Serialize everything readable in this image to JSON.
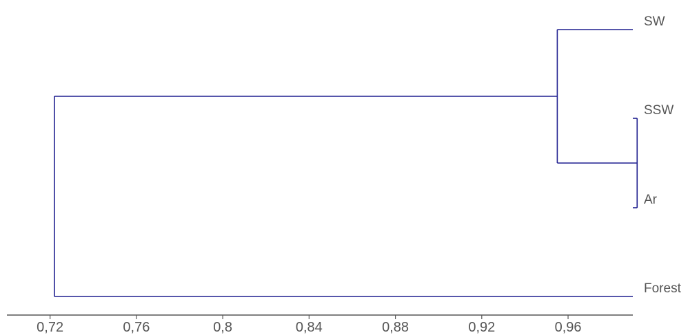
{
  "chart_data": {
    "type": "dendrogram",
    "title": "",
    "xlabel": "",
    "ylabel": "",
    "xlim": [
      0.7,
      0.99
    ],
    "x_ticks": [
      0.72,
      0.76,
      0.8,
      0.84,
      0.88,
      0.92,
      0.96
    ],
    "x_tick_labels": [
      "0,72",
      "0,76",
      "0,8",
      "0,84",
      "0,88",
      "0,92",
      "0,96"
    ],
    "leaves": [
      "SW",
      "SSW",
      "Ar",
      "Forest"
    ],
    "merges": [
      {
        "id": "m1",
        "left": "SSW",
        "right": "Ar",
        "similarity": 0.992
      },
      {
        "id": "m2",
        "left": "SW",
        "right": "m1",
        "similarity": 0.955
      },
      {
        "id": "m3",
        "left": "m2",
        "right": "Forest",
        "similarity": 0.722
      }
    ],
    "leaf_extent": 0.992,
    "line_color": "#1f1f8f",
    "axis_color": "#555555",
    "grid": false
  }
}
